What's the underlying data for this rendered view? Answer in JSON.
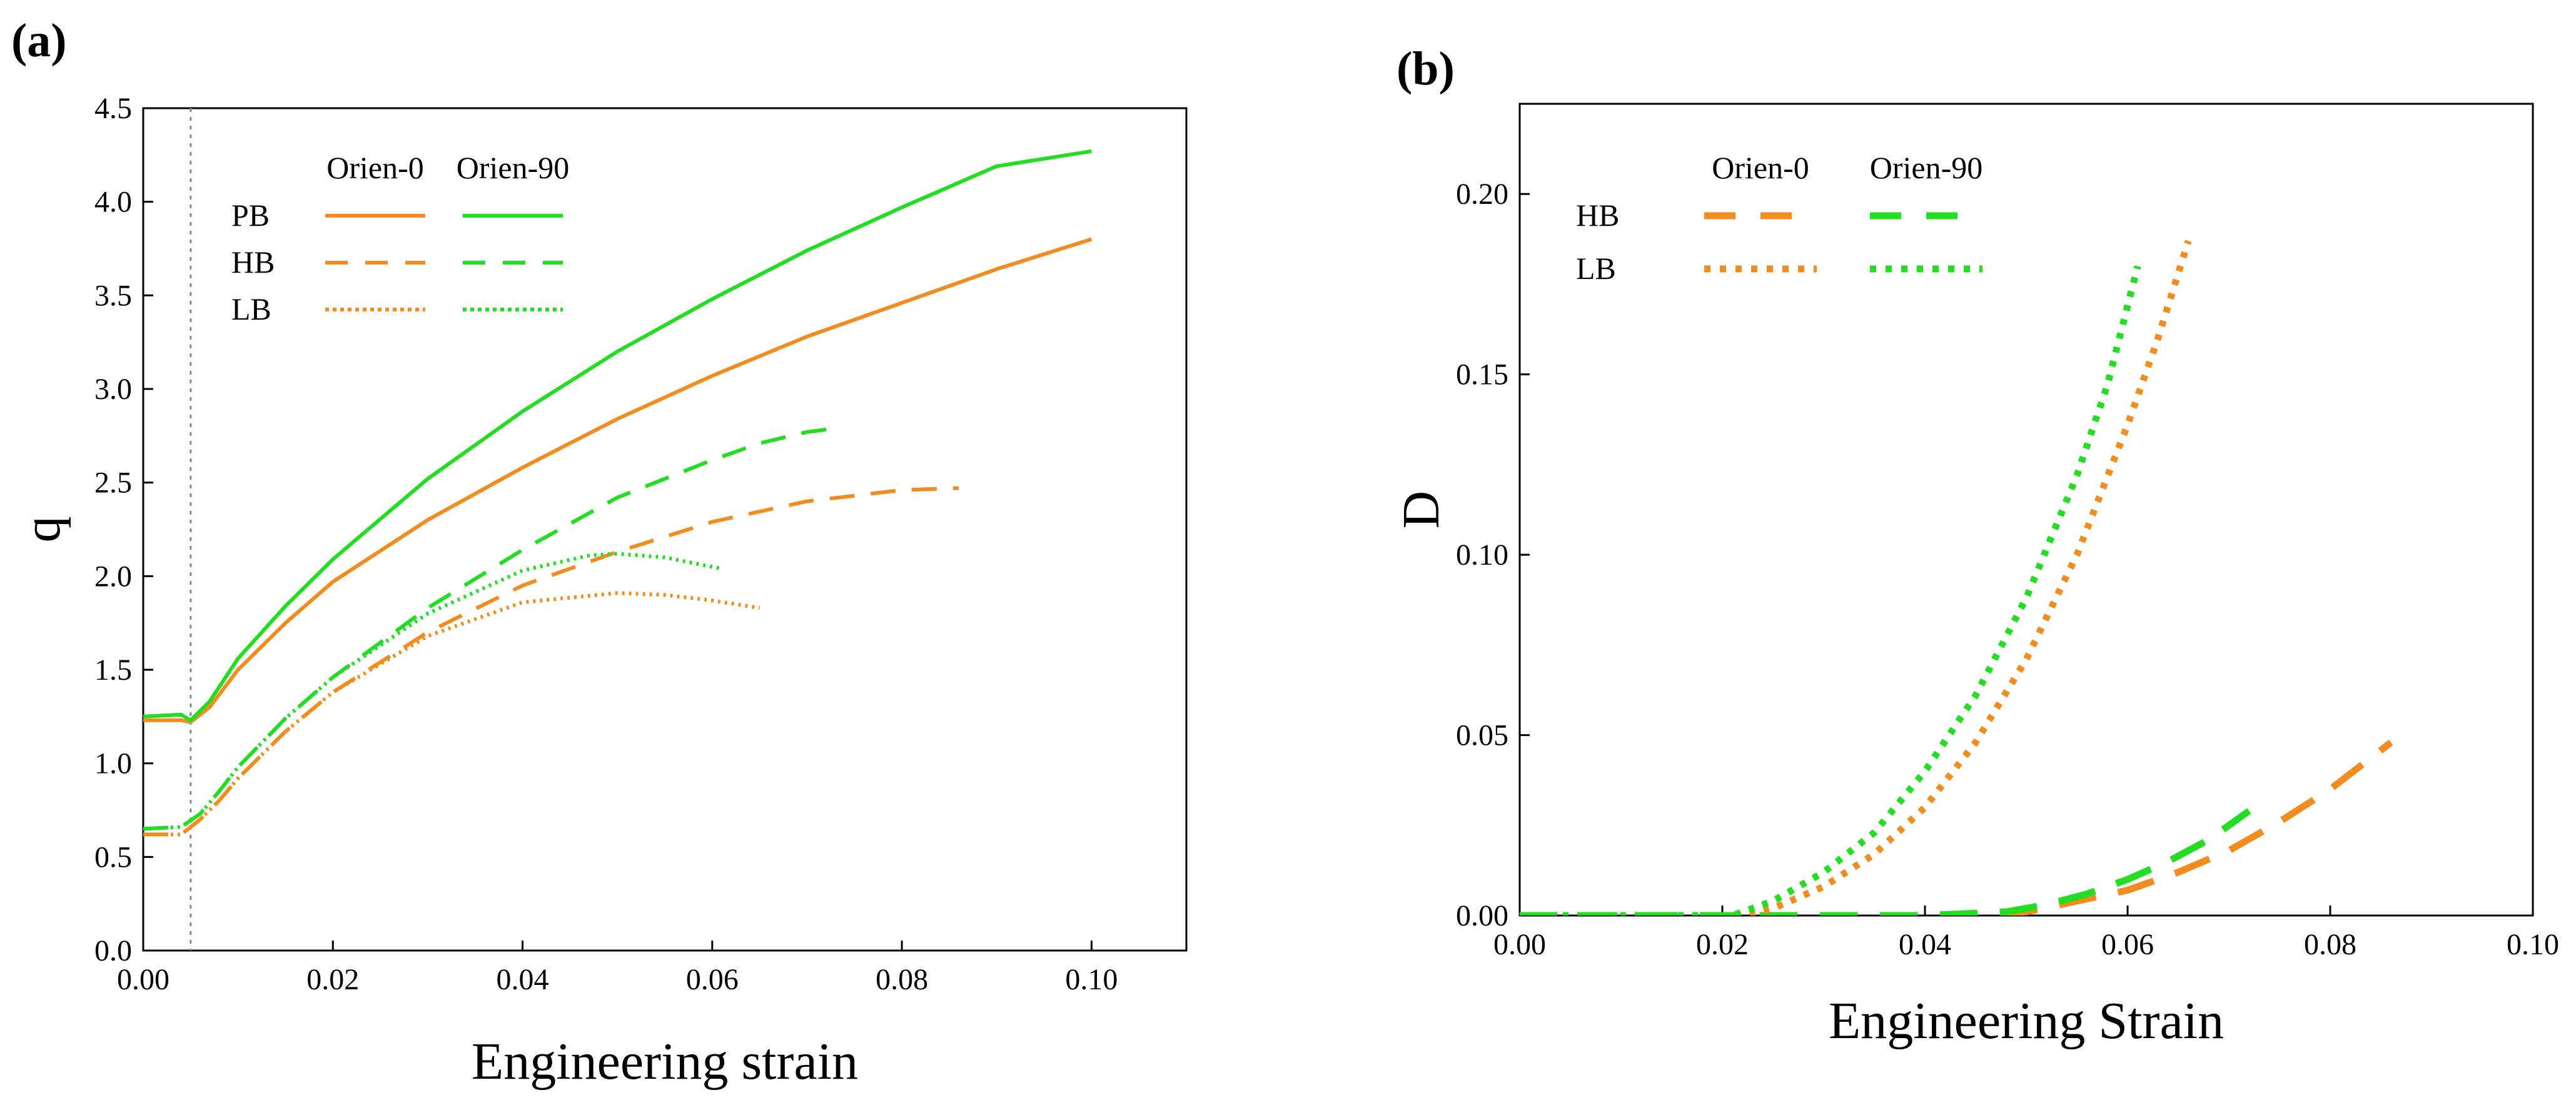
{
  "chart_data": [
    {
      "type": "line",
      "panel_label": "(a)",
      "title": "",
      "xlabel": "Engineering strain",
      "ylabel": "q",
      "xlim": [
        0,
        0.11
      ],
      "ylim": [
        0,
        4.5
      ],
      "x_ticks": [
        "0.00",
        "0.02",
        "0.04",
        "0.06",
        "0.08",
        "0.10"
      ],
      "y_ticks": [
        "0.0",
        "0.5",
        "1.0",
        "1.5",
        "2.0",
        "2.5",
        "3.0",
        "3.5",
        "4.0",
        "4.5"
      ],
      "grid": false,
      "reference_line_x": 0.005,
      "legend": {
        "placement": "top-left",
        "column_headers": [
          "Orien-0",
          "Orien-90"
        ],
        "row_labels": [
          "PB",
          "HB",
          "LB"
        ]
      },
      "series": [
        {
          "orientation": "Orien-0",
          "type_label": "PB",
          "color": "#f28c1e",
          "style": "solid",
          "x": [
            0,
            0.004,
            0.005,
            0.007,
            0.01,
            0.015,
            0.02,
            0.03,
            0.04,
            0.05,
            0.06,
            0.07,
            0.08,
            0.09,
            0.1
          ],
          "y": [
            1.23,
            1.23,
            1.22,
            1.3,
            1.5,
            1.75,
            1.97,
            2.3,
            2.58,
            2.84,
            3.07,
            3.28,
            3.46,
            3.64,
            3.8
          ]
        },
        {
          "orientation": "Orien-90",
          "type_label": "PB",
          "color": "#22dd22",
          "style": "solid",
          "x": [
            0,
            0.004,
            0.005,
            0.007,
            0.01,
            0.015,
            0.02,
            0.03,
            0.04,
            0.05,
            0.06,
            0.07,
            0.08,
            0.09,
            0.1
          ],
          "y": [
            1.25,
            1.26,
            1.23,
            1.33,
            1.56,
            1.84,
            2.09,
            2.52,
            2.88,
            3.2,
            3.48,
            3.74,
            3.97,
            4.19,
            4.27
          ]
        },
        {
          "orientation": "Orien-0",
          "type_label": "HB",
          "color": "#f28c1e",
          "style": "dashed",
          "x": [
            0,
            0.004,
            0.006,
            0.008,
            0.01,
            0.015,
            0.02,
            0.03,
            0.04,
            0.05,
            0.06,
            0.07,
            0.08,
            0.086
          ],
          "y": [
            0.62,
            0.62,
            0.7,
            0.8,
            0.92,
            1.17,
            1.38,
            1.7,
            1.95,
            2.13,
            2.29,
            2.4,
            2.46,
            2.47
          ]
        },
        {
          "orientation": "Orien-90",
          "type_label": "HB",
          "color": "#22dd22",
          "style": "dashed",
          "x": [
            0,
            0.004,
            0.006,
            0.008,
            0.01,
            0.015,
            0.02,
            0.03,
            0.04,
            0.05,
            0.06,
            0.065,
            0.07,
            0.073
          ],
          "y": [
            0.65,
            0.66,
            0.73,
            0.85,
            0.98,
            1.24,
            1.46,
            1.83,
            2.14,
            2.42,
            2.62,
            2.71,
            2.77,
            2.79
          ]
        },
        {
          "orientation": "Orien-0",
          "type_label": "LB",
          "color": "#f28c1e",
          "style": "dotted",
          "x": [
            0,
            0.004,
            0.006,
            0.008,
            0.01,
            0.015,
            0.02,
            0.03,
            0.04,
            0.05,
            0.055,
            0.06,
            0.065
          ],
          "y": [
            0.62,
            0.62,
            0.7,
            0.8,
            0.92,
            1.17,
            1.38,
            1.68,
            1.86,
            1.91,
            1.9,
            1.87,
            1.83
          ]
        },
        {
          "orientation": "Orien-90",
          "type_label": "LB",
          "color": "#22dd22",
          "style": "dotted",
          "x": [
            0,
            0.004,
            0.006,
            0.008,
            0.01,
            0.015,
            0.02,
            0.03,
            0.04,
            0.047,
            0.05,
            0.055,
            0.061
          ],
          "y": [
            0.65,
            0.66,
            0.73,
            0.85,
            0.98,
            1.24,
            1.46,
            1.8,
            2.03,
            2.11,
            2.12,
            2.1,
            2.04
          ]
        }
      ]
    },
    {
      "type": "line",
      "panel_label": "(b)",
      "title": "",
      "xlabel": "Engineering Strain",
      "ylabel": "D",
      "xlim": [
        0,
        0.1
      ],
      "ylim": [
        0,
        0.225
      ],
      "x_ticks": [
        "0.00",
        "0.02",
        "0.04",
        "0.06",
        "0.08",
        "0.10"
      ],
      "y_ticks": [
        "0.00",
        "0.05",
        "0.10",
        "0.15",
        "0.20"
      ],
      "grid": false,
      "legend": {
        "placement": "top-left",
        "column_headers": [
          "Orien-0",
          "Orien-90"
        ],
        "row_labels": [
          "HB",
          "LB"
        ]
      },
      "series": [
        {
          "orientation": "Orien-0",
          "type_label": "HB",
          "color": "#f28c1e",
          "style": "dashed",
          "x": [
            0,
            0.04,
            0.05,
            0.055,
            0.06,
            0.065,
            0.07,
            0.075,
            0.08,
            0.086
          ],
          "y": [
            0,
            0,
            0.001,
            0.004,
            0.007,
            0.012,
            0.018,
            0.026,
            0.035,
            0.048
          ]
        },
        {
          "orientation": "Orien-90",
          "type_label": "HB",
          "color": "#22dd22",
          "style": "dashed",
          "x": [
            0,
            0.04,
            0.048,
            0.052,
            0.056,
            0.06,
            0.064,
            0.068,
            0.072
          ],
          "y": [
            0,
            0,
            0.001,
            0.003,
            0.006,
            0.01,
            0.015,
            0.021,
            0.029
          ]
        },
        {
          "orientation": "Orien-0",
          "type_label": "LB",
          "color": "#f28c1e",
          "style": "dotted",
          "x": [
            0,
            0.022,
            0.025,
            0.03,
            0.035,
            0.04,
            0.045,
            0.05,
            0.055,
            0.06,
            0.063,
            0.066
          ],
          "y": [
            0,
            0,
            0.002,
            0.008,
            0.017,
            0.03,
            0.048,
            0.071,
            0.1,
            0.136,
            0.16,
            0.187
          ]
        },
        {
          "orientation": "Orien-90",
          "type_label": "LB",
          "color": "#22dd22",
          "style": "dotted",
          "x": [
            0,
            0.021,
            0.025,
            0.03,
            0.035,
            0.04,
            0.045,
            0.05,
            0.055,
            0.058,
            0.061
          ],
          "y": [
            0,
            0,
            0.004,
            0.012,
            0.023,
            0.04,
            0.061,
            0.088,
            0.122,
            0.147,
            0.18
          ]
        }
      ]
    }
  ]
}
